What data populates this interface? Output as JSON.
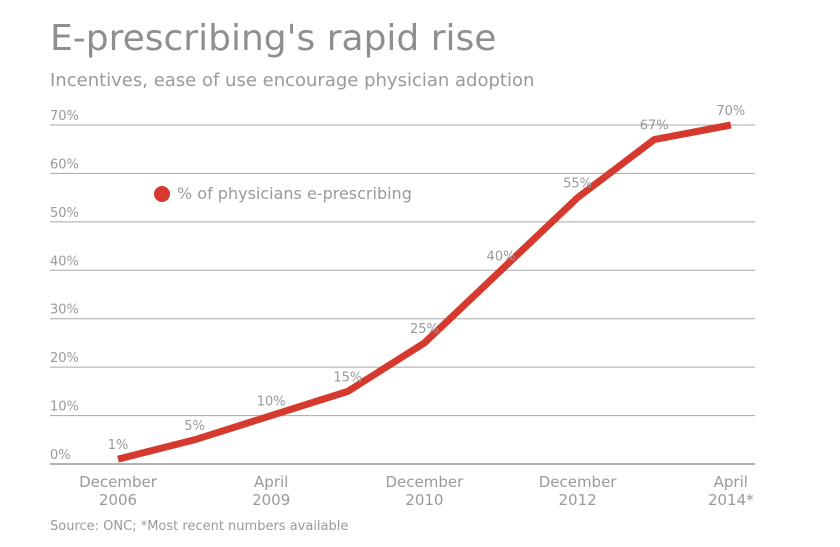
{
  "chart_data": {
    "type": "line",
    "title": "E-prescribing's rapid rise",
    "subtitle": "Incentives, ease of use encourage physician adoption",
    "source": "Source: ONC; *Most recent numbers available",
    "ylim": [
      0,
      70
    ],
    "y_ticks": [
      "0%",
      "10%",
      "20%",
      "30%",
      "40%",
      "50%",
      "60%",
      "70%"
    ],
    "x_ticks": [
      {
        "pos": 0,
        "line1": "December",
        "line2": "2006"
      },
      {
        "pos": 2,
        "line1": "April",
        "line2": "2009"
      },
      {
        "pos": 4,
        "line1": "December",
        "line2": "2010"
      },
      {
        "pos": 6,
        "line1": "December",
        "line2": "2012"
      },
      {
        "pos": 8,
        "line1": "April",
        "line2": "2014*"
      }
    ],
    "series": [
      {
        "name": "% of physicians e-prescribing",
        "color": "#d63a2e",
        "values": [
          1,
          5,
          10,
          15,
          25,
          40,
          55,
          67,
          70
        ],
        "labels": [
          "1%",
          "5%",
          "10%",
          "15%",
          "25%",
          "40%",
          "55%",
          "67%",
          "70%"
        ]
      }
    ],
    "grid": true,
    "legend_position": "top-left"
  }
}
